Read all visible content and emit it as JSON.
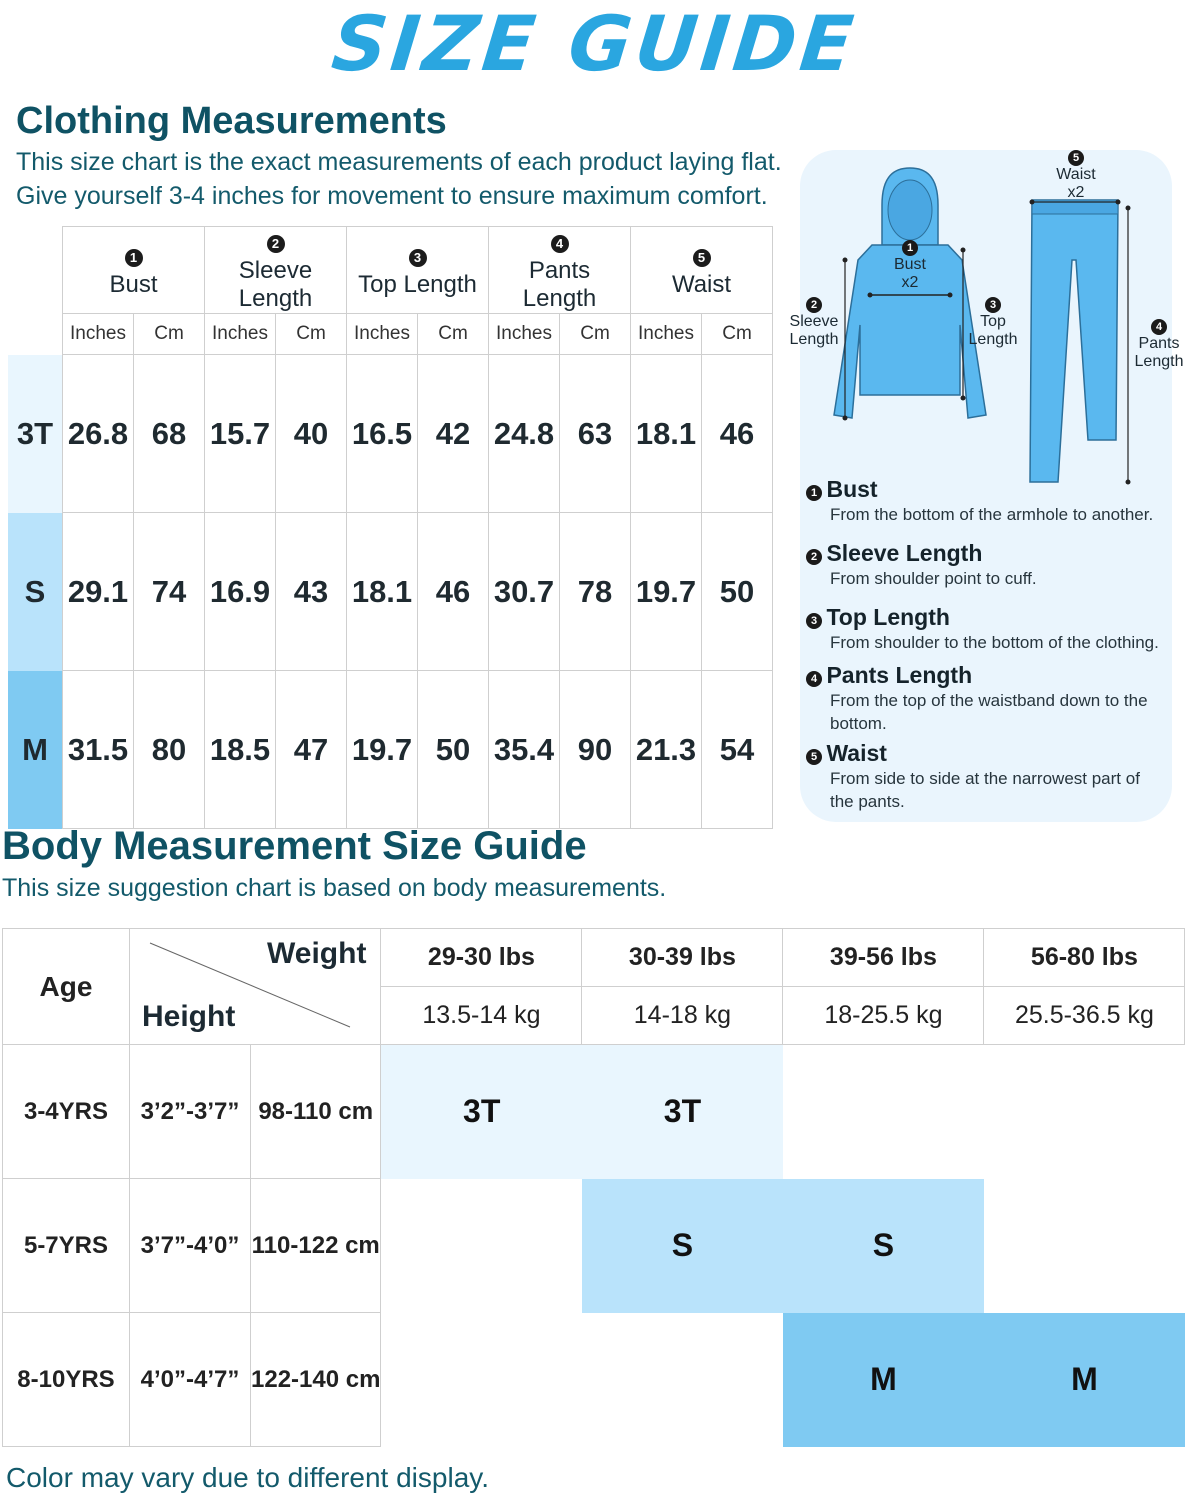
{
  "title": "SIZE GUIDE",
  "clothing": {
    "heading": "Clothing Measurements",
    "desc1": "This size chart is the exact measurements of each product laying flat.",
    "desc2": "Give yourself 3-4 inches for movement to ensure maximum comfort.",
    "columns": [
      {
        "num": "1",
        "label": "Bust"
      },
      {
        "num": "2",
        "label": "Sleeve Length"
      },
      {
        "num": "3",
        "label": "Top Length"
      },
      {
        "num": "4",
        "label": "Pants Length"
      },
      {
        "num": "5",
        "label": "Waist"
      }
    ],
    "unit_in": "Inches",
    "unit_cm": "Cm",
    "rows": [
      {
        "size": "3T",
        "values": [
          "26.8",
          "68",
          "15.7",
          "40",
          "16.5",
          "42",
          "24.8",
          "63",
          "18.1",
          "46"
        ]
      },
      {
        "size": "S",
        "values": [
          "29.1",
          "74",
          "16.9",
          "43",
          "18.1",
          "46",
          "30.7",
          "78",
          "19.7",
          "50"
        ]
      },
      {
        "size": "M",
        "values": [
          "31.5",
          "80",
          "18.5",
          "47",
          "19.7",
          "50",
          "35.4",
          "90",
          "21.3",
          "54"
        ]
      }
    ]
  },
  "diagram": {
    "bust": "Bust",
    "bust_x": "x2",
    "sleeve1": "Sleeve",
    "sleeve2": "Length",
    "top1": "Top",
    "top2": "Length",
    "waist": "Waist",
    "waist_x": "x2",
    "pants1": "Pants",
    "pants2": "Length",
    "nums": [
      "1",
      "2",
      "3",
      "4",
      "5"
    ]
  },
  "definitions": [
    {
      "num": "1",
      "title": "Bust",
      "desc": "From the bottom of the armhole to another."
    },
    {
      "num": "2",
      "title": "Sleeve Length",
      "desc": "From shoulder point to cuff."
    },
    {
      "num": "3",
      "title": "Top Length",
      "desc": "From shoulder to the bottom of the clothing."
    },
    {
      "num": "4",
      "title": "Pants Length",
      "desc": "From the top of the waistband down to the bottom."
    },
    {
      "num": "5",
      "title": "Waist",
      "desc": "From side to side at the narrowest part of the pants."
    }
  ],
  "body": {
    "heading": "Body Measurement Size Guide",
    "desc": "This size suggestion chart is based on body measurements.",
    "age_label": "Age",
    "weight_label": "Weight",
    "height_label": "Height",
    "weights_lbs": [
      "29-30 lbs",
      "30-39 lbs",
      "39-56 lbs",
      "56-80 lbs"
    ],
    "weights_kg": [
      "13.5-14 kg",
      "14-18 kg",
      "18-25.5 kg",
      "25.5-36.5 kg"
    ],
    "rows": [
      {
        "age": "3-4YRS",
        "height_ft": "3’2”-3’7”",
        "height_cm": "98-110 cm",
        "sizes": [
          "3T",
          "3T",
          "",
          ""
        ]
      },
      {
        "age": "5-7YRS",
        "height_ft": "3’7”-4’0”",
        "height_cm": "110-122 cm",
        "sizes": [
          "",
          "S",
          "S",
          ""
        ]
      },
      {
        "age": "8-10YRS",
        "height_ft": "4’0”-4’7”",
        "height_cm": "122-140 cm",
        "sizes": [
          "",
          "",
          "M",
          "M"
        ]
      }
    ]
  },
  "footer": "Color may vary due to different display.",
  "colors": {
    "size_3T": "#e9f6fe",
    "size_S": "#b9e3fb",
    "size_M": "#7fcaf2",
    "title": "#2aa6e0",
    "heading": "#0f5264"
  }
}
